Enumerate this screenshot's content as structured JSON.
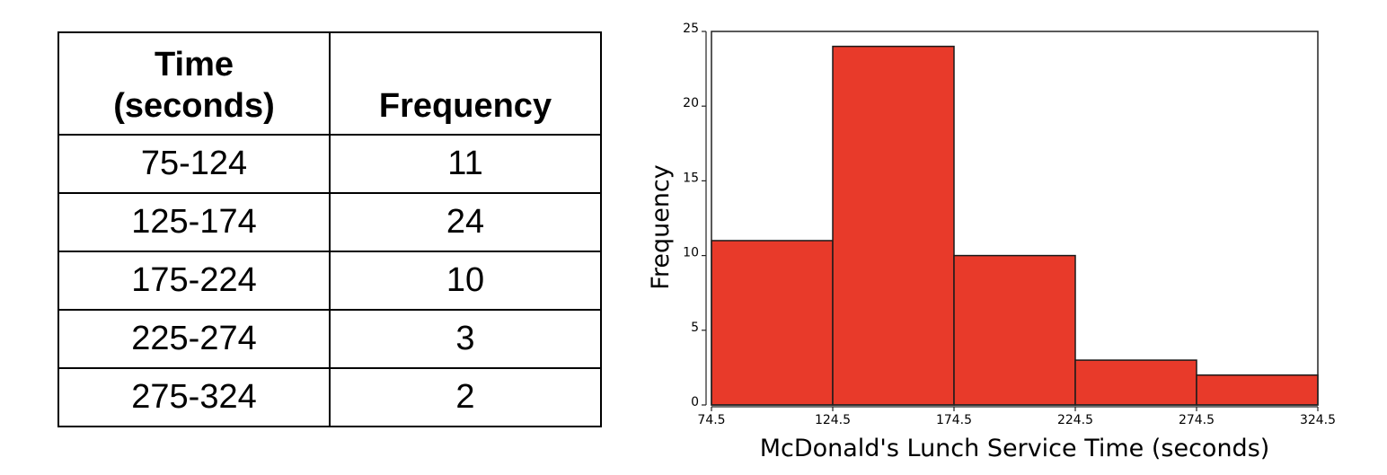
{
  "table": {
    "headers": {
      "time": [
        "Time",
        "(seconds)"
      ],
      "frequency": "Frequency"
    },
    "rows": [
      {
        "time": "75-124",
        "frequency": "11"
      },
      {
        "time": "125-174",
        "frequency": "24"
      },
      {
        "time": "175-224",
        "frequency": "10"
      },
      {
        "time": "225-274",
        "frequency": "3"
      },
      {
        "time": "275-324",
        "frequency": "2"
      }
    ]
  },
  "chart_data": {
    "type": "bar",
    "subtype": "histogram",
    "bin_edges": [
      74.5,
      124.5,
      174.5,
      224.5,
      274.5,
      324.5
    ],
    "x_tick_labels": [
      "74.5",
      "124.5",
      "174.5",
      "224.5",
      "274.5",
      "324.5"
    ],
    "values": [
      11,
      24,
      10,
      3,
      2
    ],
    "xlabel": "McDonald's Lunch Service Time (seconds)",
    "ylabel": "Frequency",
    "xlim": [
      74.5,
      324.5
    ],
    "ylim": [
      0,
      25
    ],
    "y_ticks": [
      0,
      5,
      10,
      15,
      20,
      25
    ],
    "grid": false,
    "bar_color": "#E83A2A",
    "edge_color": "#1a1a1a"
  }
}
